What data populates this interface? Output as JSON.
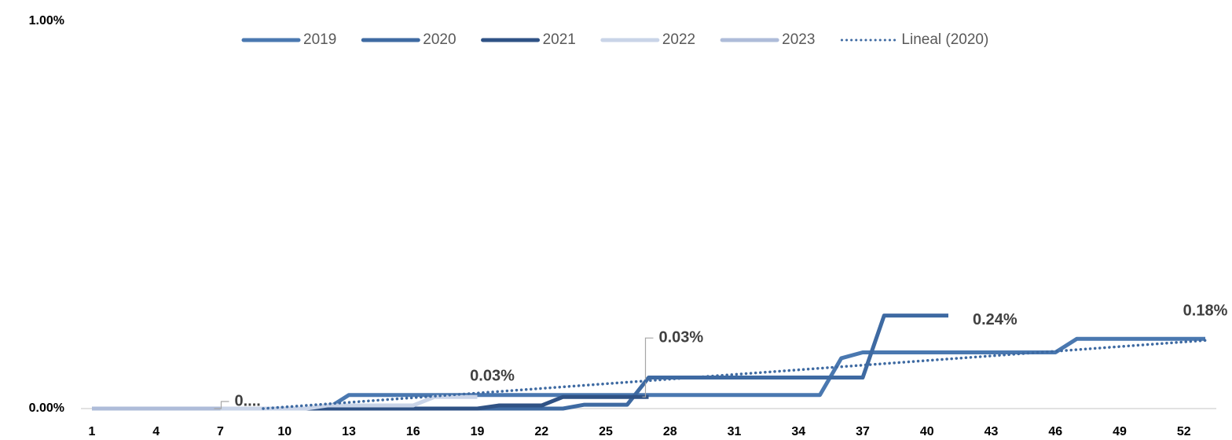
{
  "chart_data": {
    "type": "line",
    "categories": [
      1,
      null,
      null,
      4,
      null,
      null,
      7,
      null,
      null,
      10,
      null,
      null,
      13,
      null,
      null,
      16,
      null,
      null,
      19,
      null,
      null,
      22,
      null,
      null,
      25,
      null,
      null,
      28,
      null,
      null,
      31,
      null,
      null,
      34,
      null,
      null,
      37,
      null,
      null,
      40,
      null,
      null,
      43,
      null,
      null,
      46,
      null,
      null,
      49,
      null,
      null,
      52,
      null
    ],
    "ylim": [
      0,
      1
    ],
    "yticks": [
      {
        "value": 0,
        "label": "0.00%"
      },
      {
        "value": 1,
        "label": "1.00%"
      }
    ],
    "grid": false,
    "legend": "top",
    "series": [
      {
        "name": "2019",
        "color": "#4a78b0",
        "values": [
          0,
          0,
          0,
          0,
          0,
          0,
          0,
          0,
          0,
          0,
          0,
          0,
          0.035,
          0.035,
          0.035,
          0.035,
          0.035,
          0.035,
          0.035,
          0.035,
          0.035,
          0.035,
          0.035,
          0.035,
          0.035,
          0.035,
          0.035,
          0.035,
          0.035,
          0.035,
          0.035,
          0.035,
          0.035,
          0.035,
          0.035,
          0.13,
          0.145,
          0.145,
          0.145,
          0.145,
          0.145,
          0.145,
          0.145,
          0.145,
          0.145,
          0.145,
          0.18,
          0.18,
          0.18,
          0.18,
          0.18,
          0.18,
          0.18
        ],
        "value_labels": [
          null,
          null,
          null,
          null,
          null,
          null,
          null,
          null,
          null,
          null,
          null,
          null,
          null,
          null,
          null,
          null,
          null,
          null,
          null,
          null,
          null,
          null,
          null,
          null,
          null,
          null,
          null,
          null,
          null,
          null,
          null,
          null,
          null,
          null,
          null,
          null,
          null,
          null,
          null,
          null,
          null,
          null,
          null,
          null,
          null,
          null,
          null,
          null,
          null,
          null,
          null,
          null,
          "0.18%"
        ]
      },
      {
        "name": "2020",
        "color": "#3e6aa2",
        "values": [
          0,
          0,
          0,
          0,
          0,
          0,
          0,
          0,
          0,
          0,
          0,
          0,
          0,
          0,
          0,
          0,
          0,
          0,
          0,
          0,
          0,
          0,
          0,
          0.01,
          0.01,
          0.01,
          0.08,
          0.08,
          0.08,
          0.08,
          0.08,
          0.08,
          0.08,
          0.08,
          0.08,
          0.08,
          0.08,
          0.24,
          0.24,
          0.24,
          0.24,
          null,
          null,
          null,
          null,
          null,
          null,
          null,
          null,
          null,
          null,
          null,
          null
        ],
        "value_labels": [
          null,
          null,
          null,
          null,
          null,
          null,
          null,
          null,
          null,
          null,
          null,
          null,
          null,
          null,
          null,
          null,
          null,
          null,
          null,
          null,
          null,
          null,
          null,
          null,
          null,
          null,
          null,
          null,
          null,
          null,
          null,
          null,
          null,
          null,
          null,
          null,
          null,
          null,
          null,
          null,
          "0.24%",
          null,
          null,
          null,
          null,
          null,
          null,
          null,
          null,
          null,
          null,
          null,
          null
        ]
      },
      {
        "name": "2021",
        "color": "#2f5285",
        "values": [
          0,
          0,
          0,
          0,
          0,
          0,
          0,
          0,
          0,
          0,
          0,
          0,
          0,
          0,
          0,
          0,
          0,
          0,
          0,
          0.008,
          0.008,
          0.008,
          0.03,
          0.03,
          0.03,
          0.03,
          0.03,
          null,
          null,
          null,
          null,
          null,
          null,
          null,
          null,
          null,
          null,
          null,
          null,
          null,
          null,
          null,
          null,
          null,
          null,
          null,
          null,
          null,
          null,
          null,
          null,
          null,
          null
        ],
        "value_labels": [
          null,
          null,
          null,
          null,
          null,
          null,
          null,
          null,
          null,
          null,
          null,
          null,
          null,
          null,
          null,
          null,
          null,
          null,
          null,
          null,
          null,
          null,
          null,
          null,
          null,
          null,
          "0.03%",
          null,
          null,
          null,
          null,
          null,
          null,
          null,
          null,
          null,
          null,
          null,
          null,
          null,
          null,
          null,
          null,
          null,
          null,
          null,
          null,
          null,
          null,
          null,
          null,
          null,
          null
        ]
      },
      {
        "name": "2022",
        "color": "#c9d4e8",
        "values": [
          0,
          0,
          0,
          0,
          0,
          0,
          0,
          0,
          0,
          0,
          0,
          0.008,
          0.008,
          0.008,
          0.008,
          0.008,
          0.03,
          0.03,
          0.03,
          null,
          null,
          null,
          null,
          null,
          null,
          null,
          null,
          null,
          null,
          null,
          null,
          null,
          null,
          null,
          null,
          null,
          null,
          null,
          null,
          null,
          null,
          null,
          null,
          null,
          null,
          null,
          null,
          null,
          null,
          null,
          null,
          null,
          null
        ],
        "value_labels": [
          null,
          null,
          null,
          null,
          null,
          null,
          null,
          null,
          null,
          null,
          null,
          null,
          null,
          null,
          null,
          null,
          null,
          null,
          "0.03%",
          null,
          null,
          null,
          null,
          null,
          null,
          null,
          null,
          null,
          null,
          null,
          null,
          null,
          null,
          null,
          null,
          null,
          null,
          null,
          null,
          null,
          null,
          null,
          null,
          null,
          null,
          null,
          null,
          null,
          null,
          null,
          null,
          null,
          null
        ]
      },
      {
        "name": "2023",
        "color": "#aebcd9",
        "values": [
          0,
          0,
          0,
          0,
          0,
          0,
          0,
          null,
          null,
          null,
          null,
          null,
          null,
          null,
          null,
          null,
          null,
          null,
          null,
          null,
          null,
          null,
          null,
          null,
          null,
          null,
          null,
          null,
          null,
          null,
          null,
          null,
          null,
          null,
          null,
          null,
          null,
          null,
          null,
          null,
          null,
          null,
          null,
          null,
          null,
          null,
          null,
          null,
          null,
          null,
          null,
          null,
          null
        ],
        "value_labels": [
          null,
          null,
          null,
          null,
          null,
          null,
          "0....",
          null,
          null,
          null,
          null,
          null,
          null,
          null,
          null,
          null,
          null,
          null,
          null,
          null,
          null,
          null,
          null,
          null,
          null,
          null,
          null,
          null,
          null,
          null,
          null,
          null,
          null,
          null,
          null,
          null,
          null,
          null,
          null,
          null,
          null,
          null,
          null,
          null,
          null,
          null,
          null,
          null,
          null,
          null,
          null,
          null,
          null
        ]
      },
      {
        "name": "Lineal (2020)",
        "color": "#3e6aa2",
        "dotted": true,
        "values": [
          null,
          null,
          null,
          null,
          null,
          null,
          null,
          null,
          0,
          0.004,
          0.008,
          0.012,
          0.016,
          0.02,
          0.024,
          0.028,
          0.032,
          0.036,
          0.04,
          0.044,
          0.048,
          0.052,
          0.056,
          0.06,
          0.064,
          0.068,
          0.072,
          0.076,
          0.08,
          0.084,
          0.088,
          0.092,
          0.096,
          0.1,
          0.104,
          0.108,
          0.112,
          0.116,
          0.12,
          0.124,
          0.128,
          0.132,
          0.136,
          0.14,
          0.144,
          0.148,
          0.152,
          0.156,
          0.16,
          0.164,
          0.168,
          0.172,
          0.176
        ]
      }
    ]
  }
}
